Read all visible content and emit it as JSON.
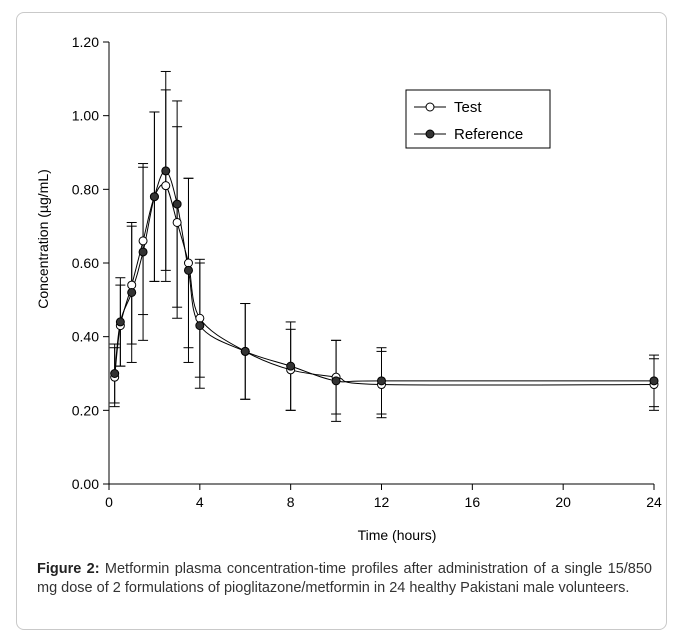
{
  "chart_data": {
    "type": "line",
    "title": "",
    "xlabel": "Time (hours)",
    "ylabel": "Concentration (µg/mL)",
    "xlim": [
      0,
      24
    ],
    "ylim": [
      0,
      1.2
    ],
    "x_ticks": [
      "0",
      "4",
      "8",
      "12",
      "16",
      "20",
      "24"
    ],
    "y_ticks": [
      "0.00",
      "0.20",
      "0.40",
      "0.60",
      "0.80",
      "1.00",
      "1.20"
    ],
    "grid": false,
    "legend_position": "top-right",
    "series": [
      {
        "name": "Test",
        "marker": "open-circle",
        "x": [
          0.25,
          0.5,
          1,
          1.5,
          2,
          2.5,
          3,
          3.5,
          4,
          6,
          8,
          10,
          12,
          24
        ],
        "y": [
          0.29,
          0.43,
          0.54,
          0.66,
          0.78,
          0.81,
          0.71,
          0.6,
          0.45,
          0.36,
          0.31,
          0.29,
          0.27,
          0.27
        ],
        "error": [
          0.08,
          0.11,
          0.16,
          0.2,
          0.23,
          0.26,
          0.26,
          0.23,
          0.16,
          0.13,
          0.11,
          0.1,
          0.09,
          0.07
        ]
      },
      {
        "name": "Reference",
        "marker": "filled-circle",
        "x": [
          0.25,
          0.5,
          1,
          1.5,
          2,
          2.5,
          3,
          3.5,
          4,
          6,
          8,
          10,
          12,
          24
        ],
        "y": [
          0.3,
          0.44,
          0.52,
          0.63,
          0.78,
          0.85,
          0.76,
          0.58,
          0.43,
          0.36,
          0.32,
          0.28,
          0.28,
          0.28
        ],
        "error": [
          0.08,
          0.12,
          0.19,
          0.24,
          0.23,
          0.27,
          0.28,
          0.25,
          0.17,
          0.13,
          0.12,
          0.11,
          0.09,
          0.07
        ]
      }
    ]
  },
  "caption": {
    "label": "Figure 2:",
    "text": " Metformin plasma concentration-time profiles after administration of a single 15/850 mg dose of 2 formulations of pioglitazone/metformin in 24 healthy Pakistani male volunteers."
  }
}
